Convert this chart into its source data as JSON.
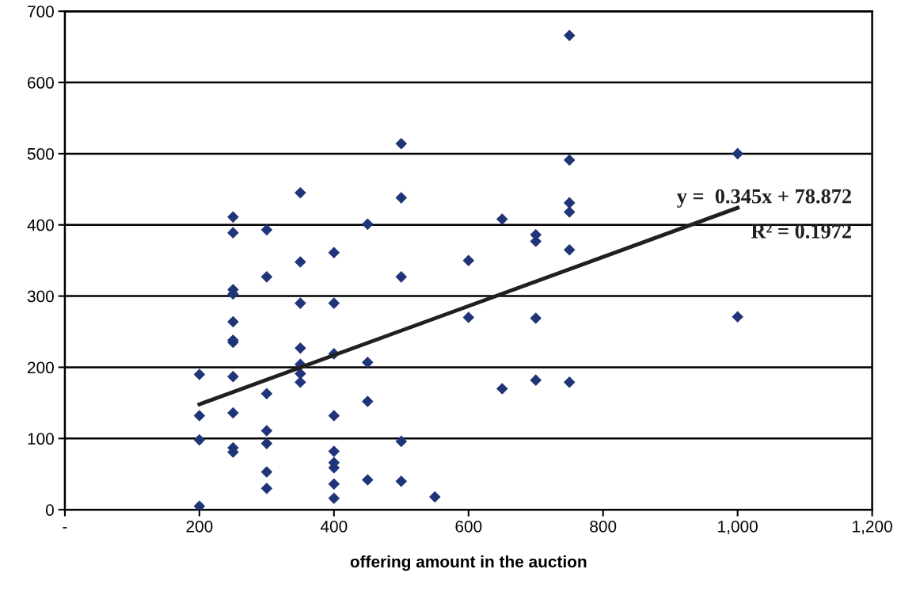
{
  "chart_data": {
    "type": "scatter",
    "xlabel": "offering amount in the auction",
    "series": [
      {
        "color": "#203478",
        "marker": "diamond",
        "x": [
          200,
          200,
          200,
          200,
          250,
          250,
          250,
          250,
          250,
          250,
          250,
          250,
          250,
          250,
          250,
          300,
          300,
          300,
          300,
          300,
          300,
          300,
          350,
          350,
          350,
          350,
          350,
          350,
          350,
          400,
          400,
          400,
          400,
          400,
          400,
          400,
          400,
          400,
          450,
          450,
          450,
          450,
          500,
          500,
          500,
          500,
          500,
          550,
          600,
          600,
          650,
          650,
          700,
          700,
          700,
          700,
          750,
          750,
          750,
          750,
          750,
          750,
          1000,
          1000
        ],
        "values": [
          190,
          132,
          98,
          5,
          411,
          389,
          309,
          303,
          264,
          238,
          235,
          187,
          136,
          87,
          81,
          393,
          327,
          163,
          111,
          93,
          53,
          30,
          445,
          348,
          290,
          227,
          204,
          191,
          179,
          361,
          290,
          219,
          132,
          82,
          66,
          59,
          36,
          16,
          401,
          207,
          152,
          42,
          514,
          438,
          327,
          96,
          40,
          18,
          350,
          270,
          408,
          170,
          386,
          377,
          269,
          182,
          666,
          491,
          431,
          418,
          365,
          179,
          500,
          271
        ]
      },
      {
        "type": "line",
        "color": "#231f20",
        "x": [
          200,
          1000
        ],
        "values": [
          148,
          424
        ]
      }
    ],
    "annotations": [
      "y =  0.345x + 78.872",
      "R² = 0.1972"
    ],
    "xlim": [
      0,
      1200
    ],
    "xticks": [
      {
        "value": 0,
        "label": "-"
      },
      200,
      400,
      600,
      800,
      {
        "value": 1000,
        "label": "1,000"
      },
      {
        "value": 1200,
        "label": "1,200"
      }
    ],
    "ylim": [
      0,
      700
    ],
    "yticks": [
      0,
      100,
      200,
      300,
      400,
      500,
      600,
      700
    ],
    "grid": "y"
  }
}
